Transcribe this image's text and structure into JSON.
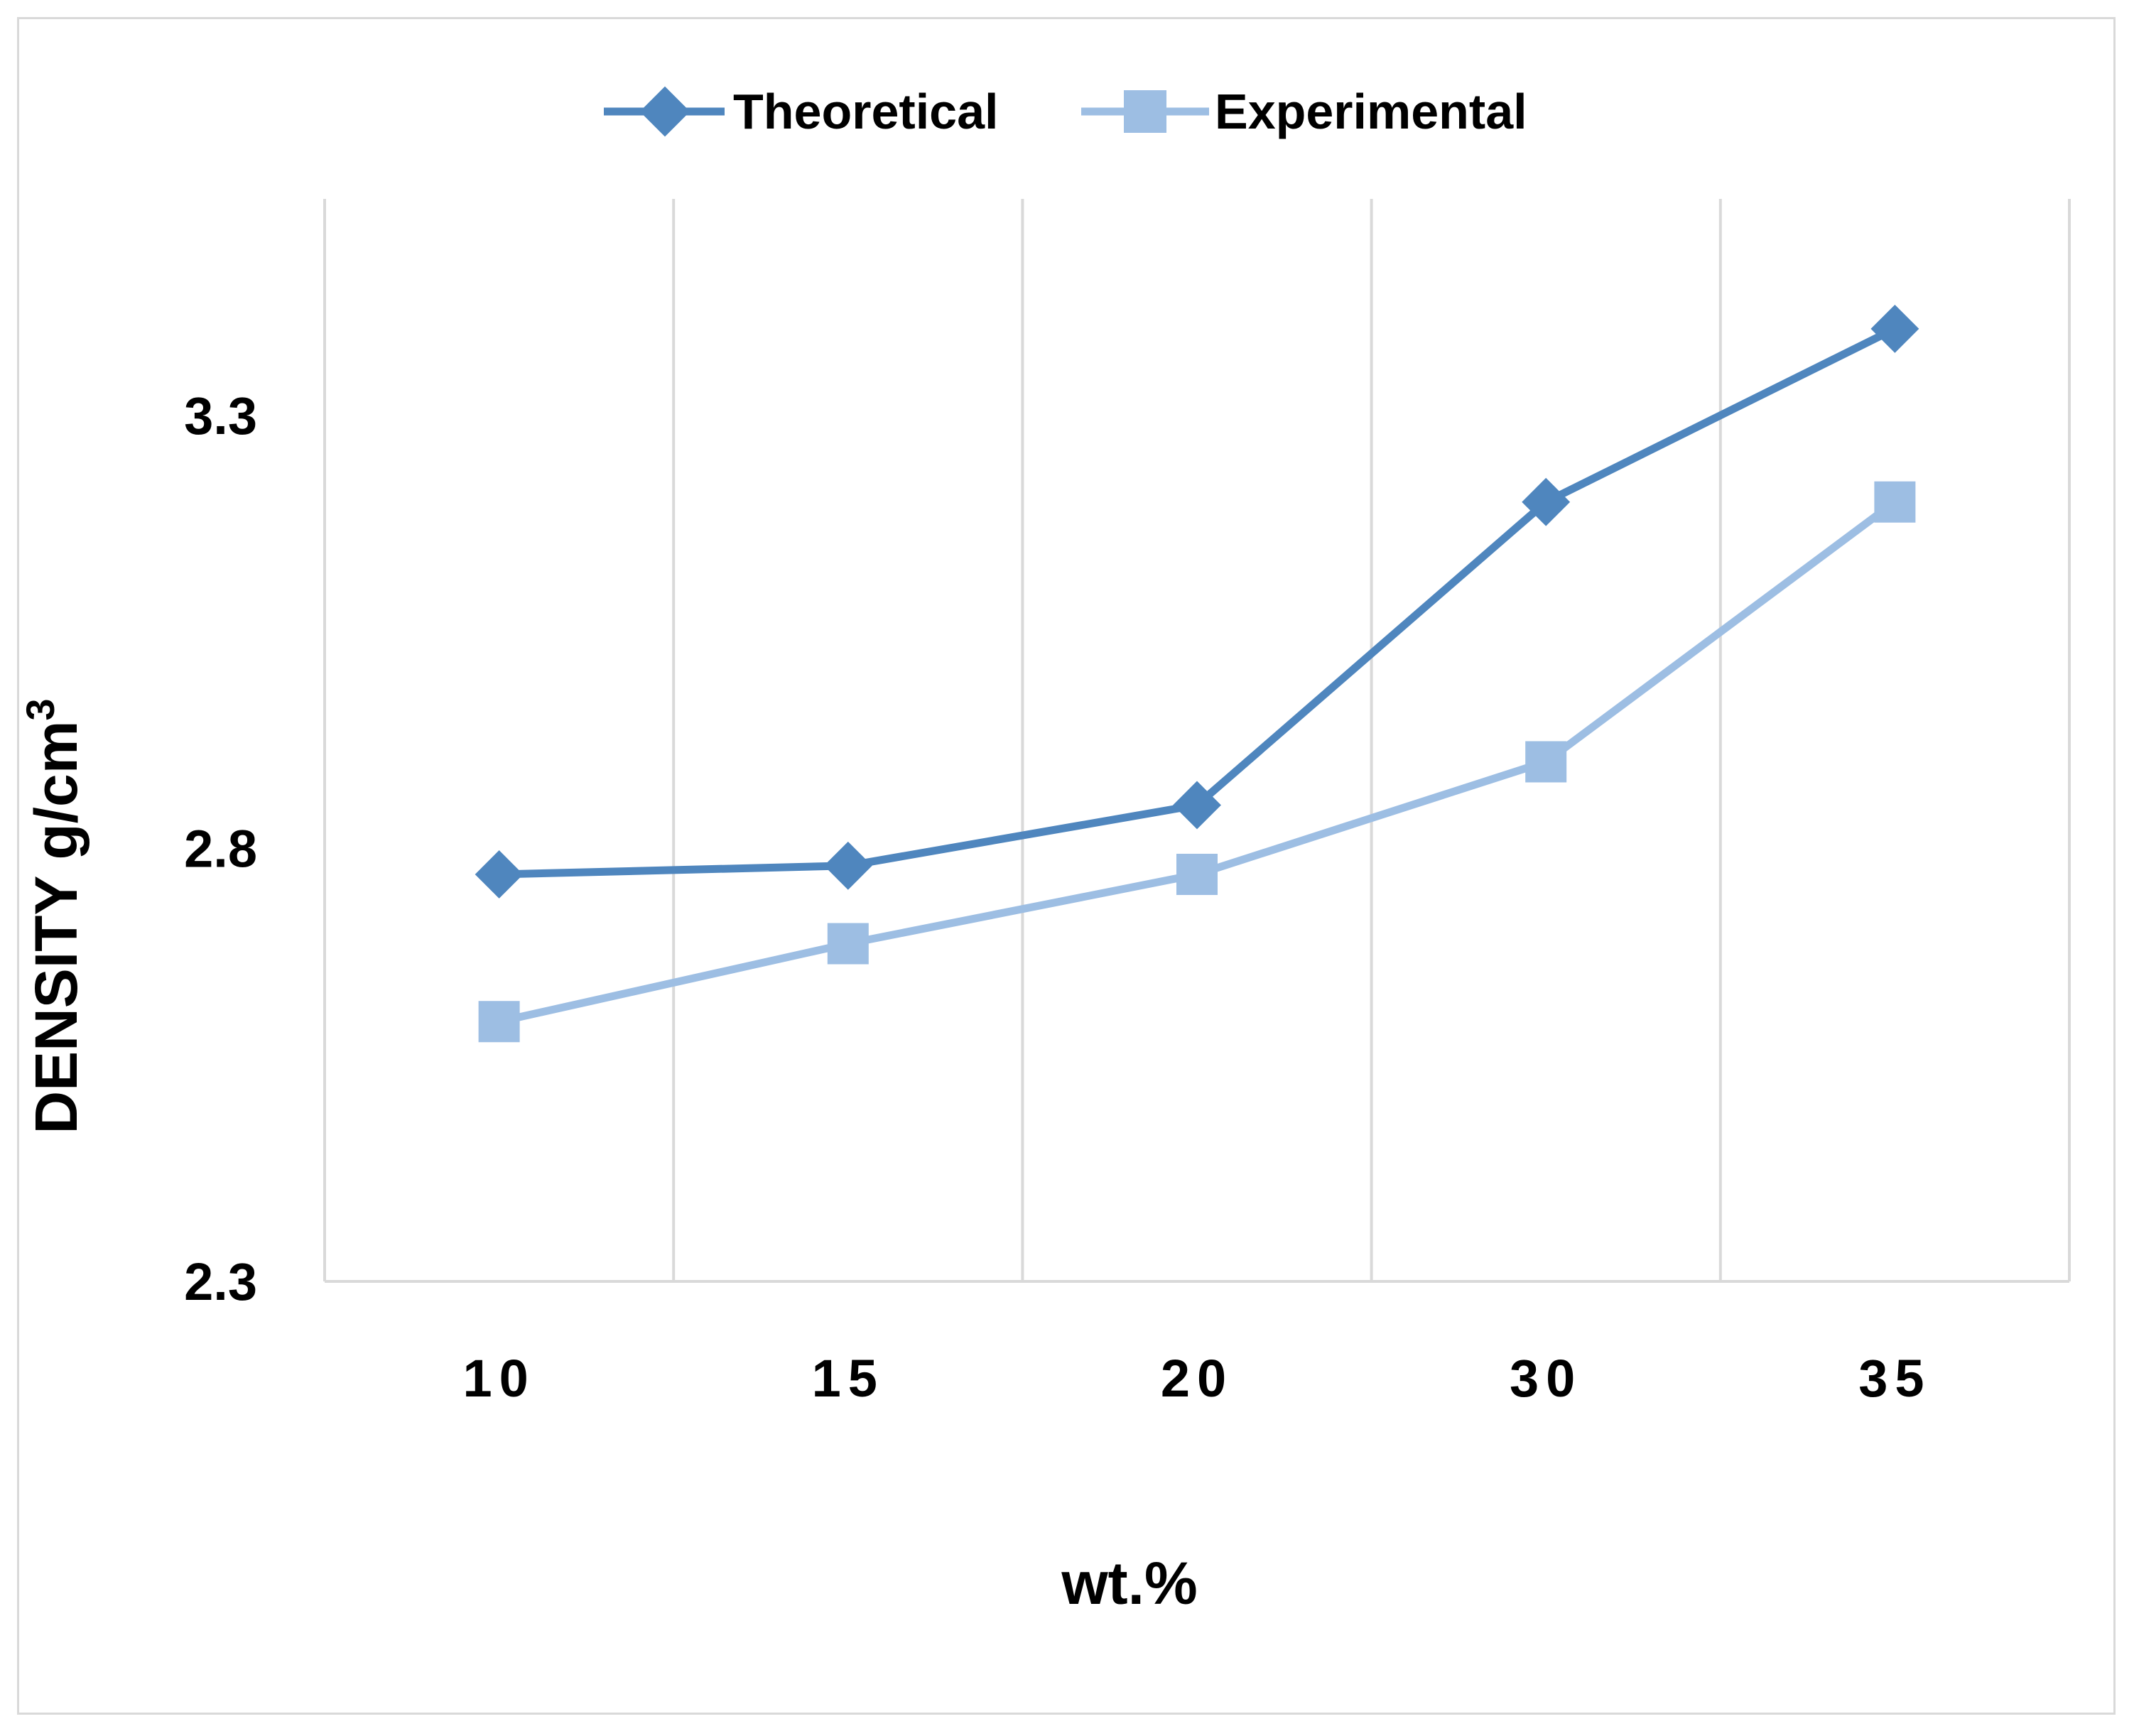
{
  "chart_data": {
    "type": "line",
    "title": "",
    "xlabel": "wt.%",
    "ylabel": "DENSITY g/cm",
    "ylabel_superscript": "3",
    "categories": [
      "10",
      "15",
      "20",
      "30",
      "35"
    ],
    "y_ticks": [
      "2.3",
      "2.8",
      "3.3"
    ],
    "ylim": [
      2.3,
      3.55
    ],
    "grid": "vertical",
    "legend_position": "top-center",
    "series": [
      {
        "name": "Theoretical",
        "marker": "diamond",
        "color": "#4f86be",
        "values": [
          2.77,
          2.78,
          2.85,
          3.2,
          3.4
        ]
      },
      {
        "name": "Experimental",
        "marker": "square",
        "color": "#9dbee3",
        "values": [
          2.6,
          2.69,
          2.77,
          2.9,
          3.2
        ]
      }
    ]
  }
}
